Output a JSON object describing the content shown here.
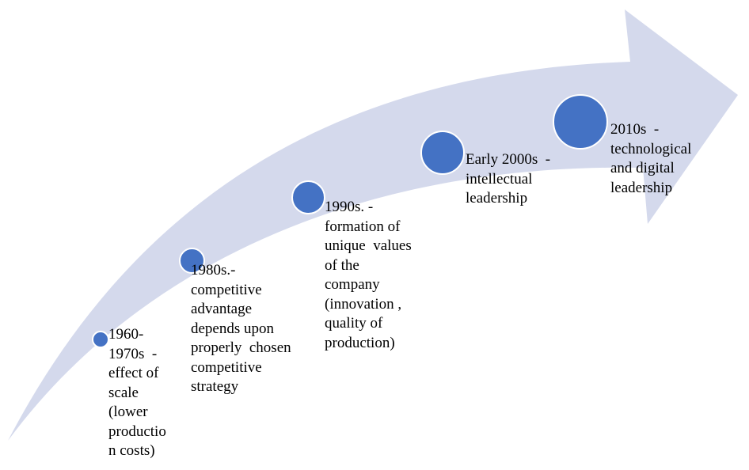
{
  "colors": {
    "arrow": "#d4d9ec",
    "dot": "#4472c4",
    "text": "#000000"
  },
  "milestones": [
    {
      "id": "1960s",
      "text": "1960-\n1970s  -\neffect of\nscale\n(lower\nproductio\nn costs)"
    },
    {
      "id": "1980s",
      "text": "1980s.-\ncompetitive\nadvantage\ndepends upon\nproperly  chosen\ncompetitive\nstrategy"
    },
    {
      "id": "1990s",
      "text": "1990s. -\nformation of\nunique  values\nof the\ncompany\n(innovation ,\nquality of\nproduction)"
    },
    {
      "id": "2000s",
      "text": "Early 2000s  -\nintellectual\nleadership"
    },
    {
      "id": "2010s",
      "text": "2010s  -\ntechnological\nand digital\nleadership"
    }
  ]
}
